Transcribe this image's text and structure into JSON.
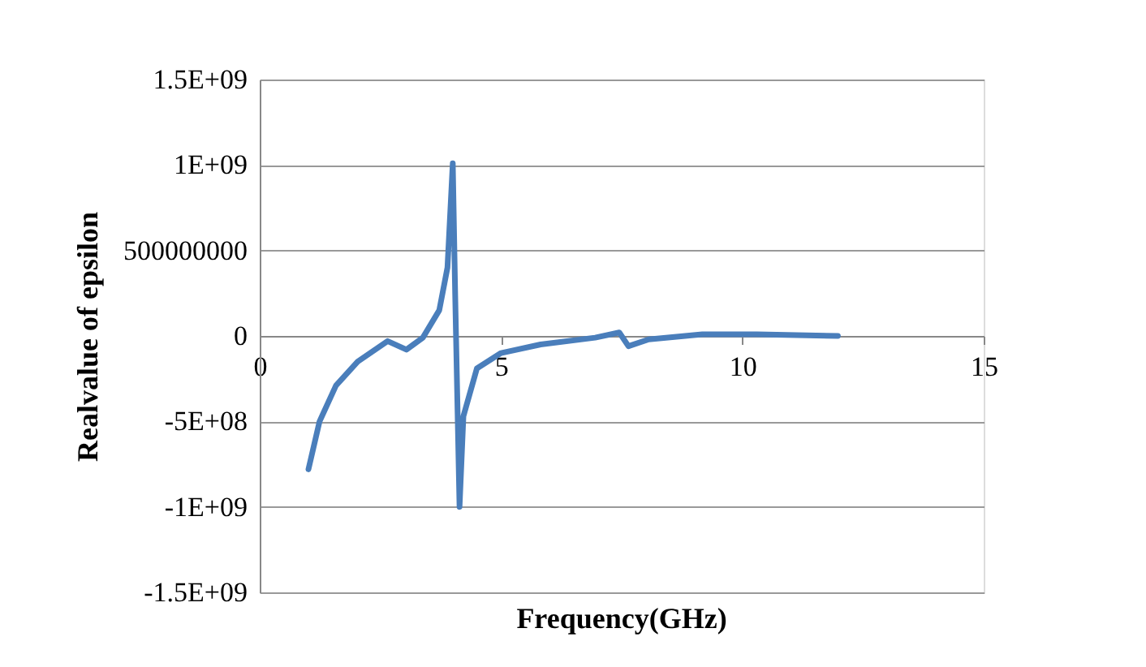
{
  "chart_data": {
    "type": "line",
    "xlabel": "Frequency(GHz)",
    "ylabel": "Realvalue of epsilon",
    "x": [
      1.01,
      1.24,
      1.58,
      2.03,
      2.65,
      3.04,
      3.38,
      3.72,
      3.89,
      4.0,
      4.05,
      4.14,
      4.22,
      4.5,
      5.0,
      5.82,
      6.95,
      7.45,
      7.64,
      8.06,
      9.17,
      10.3,
      11.98
    ],
    "series": [
      {
        "color": "#4a7ebb",
        "values": [
          -780000000,
          -500000000,
          -290000000,
          -150000000,
          -30000000,
          -80000000,
          -10000000,
          150000000,
          400000000,
          1010000000,
          240000000,
          -1000000000,
          -470000000,
          -190000000,
          -100000000,
          -50000000,
          -10000000,
          20000000,
          -60000000,
          -20000000,
          10000000,
          10000000,
          0
        ]
      }
    ],
    "xlim": [
      0,
      15
    ],
    "xticks": [
      0,
      5,
      10,
      15
    ],
    "ylim": [
      -1500000000,
      1500000000
    ],
    "yticks": [
      {
        "value": -1500000000,
        "label": "-1.5E+09"
      },
      {
        "value": -1000000000,
        "label": "-1E+09"
      },
      {
        "value": -500000000,
        "label": "-5E+08"
      },
      0,
      {
        "value": 500000000,
        "label": "500000000"
      },
      {
        "value": 1000000000,
        "label": "1E+09"
      },
      {
        "value": 1500000000,
        "label": "1.5E+09"
      }
    ],
    "grid": "y",
    "line_style": "solid",
    "marker": "none"
  }
}
